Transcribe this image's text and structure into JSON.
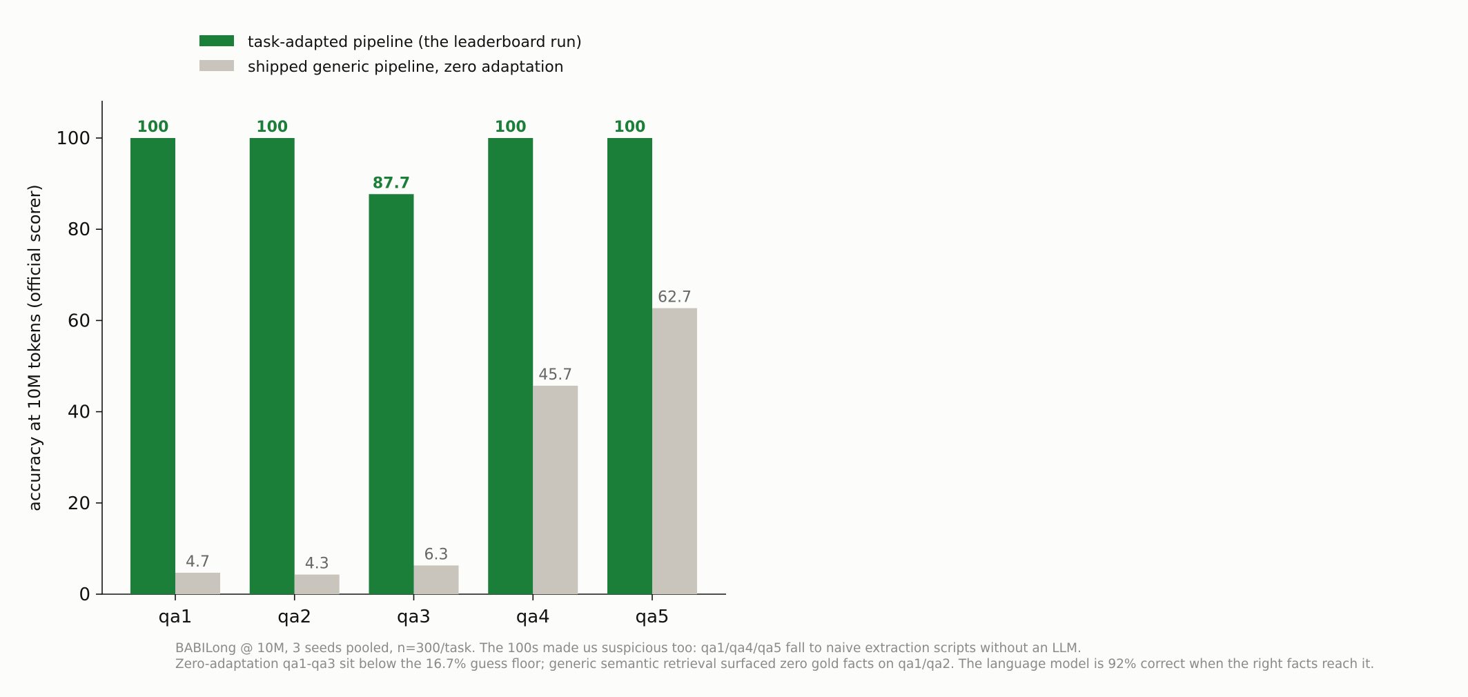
{
  "chart_data": {
    "type": "bar",
    "categories": [
      "qa1",
      "qa2",
      "qa3",
      "qa4",
      "qa5"
    ],
    "series": [
      {
        "name": "task-adapted pipeline (the leaderboard run)",
        "values": [
          100,
          100,
          87.7,
          100,
          100
        ],
        "value_labels": [
          "100",
          "100",
          "87.7",
          "100",
          "100"
        ],
        "color": "#1b7f3a",
        "label_color": "#1b7f3a"
      },
      {
        "name": "shipped generic pipeline, zero adaptation",
        "values": [
          4.7,
          4.3,
          6.3,
          45.7,
          62.7
        ],
        "value_labels": [
          "4.7",
          "4.3",
          "6.3",
          "45.7",
          "62.7"
        ],
        "color": "#c9c4bc",
        "label_color": "#666666"
      }
    ],
    "ylabel": "accuracy at 10M tokens (official scorer)",
    "xlabel": "",
    "ylim": [
      0,
      108
    ],
    "yticks": [
      0,
      20,
      40,
      60,
      80,
      100
    ],
    "grid": false,
    "legend": "top-left, above plot",
    "footnote": [
      "BABILong @ 10M, 3 seeds pooled, n=300/task. The 100s made us suspicious too: qa1/qa4/qa5 fall to naive extraction scripts without an LLM.",
      "Zero-adaptation qa1-qa3 sit below the 16.7% guess floor; generic semantic retrieval surfaced zero gold facts on qa1/qa2. The language model is 92% correct when the right facts reach it."
    ]
  }
}
